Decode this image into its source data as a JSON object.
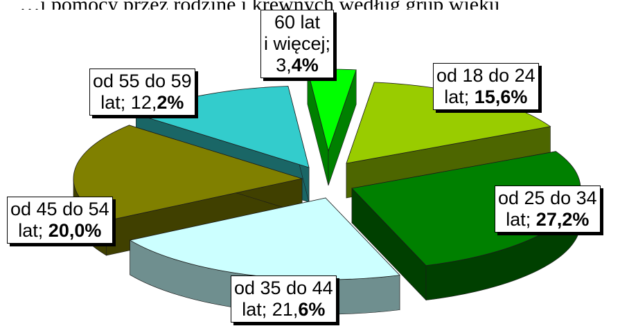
{
  "header_fragment": "…i pomocy przez rodzinę i krewnych według grup wieku",
  "chart_data": {
    "type": "pie",
    "title": "",
    "slices": [
      {
        "name": "od 18 do 24 lat",
        "value": 15.6,
        "label_line1": "od 18 do 24",
        "label_pre": "lat; ",
        "label_norm": "",
        "label_bold": "15,6%",
        "color": "#99cc00"
      },
      {
        "name": "od 25 do 34 lat",
        "value": 27.2,
        "label_line1": "od 25 do 34",
        "label_pre": "lat; ",
        "label_norm": "",
        "label_bold": "27,2%",
        "color": "#008000"
      },
      {
        "name": "od 35 do 44 lat",
        "value": 21.6,
        "label_line1": "od 35 do 44",
        "label_pre": "lat; ",
        "label_norm": "21,",
        "label_bold": "6%",
        "color": "#ccffff"
      },
      {
        "name": "od 45 do 54 lat",
        "value": 20.0,
        "label_line1": "od 45 do 54",
        "label_pre": "lat; ",
        "label_norm": "",
        "label_bold": "20,0%",
        "color": "#808000"
      },
      {
        "name": "od 55 do 59 lat",
        "value": 12.2,
        "label_line1": "od 55 do 59",
        "label_pre": "lat; ",
        "label_norm": "12,",
        "label_bold": "2%",
        "color": "#33cccc"
      },
      {
        "name": "60 lat i więcej",
        "value": 3.4,
        "label_line1": "60 lat",
        "label_line2": "i więcej;",
        "label_pre": "",
        "label_norm": "3,",
        "label_bold": "4%",
        "color": "#00ff00"
      }
    ]
  }
}
